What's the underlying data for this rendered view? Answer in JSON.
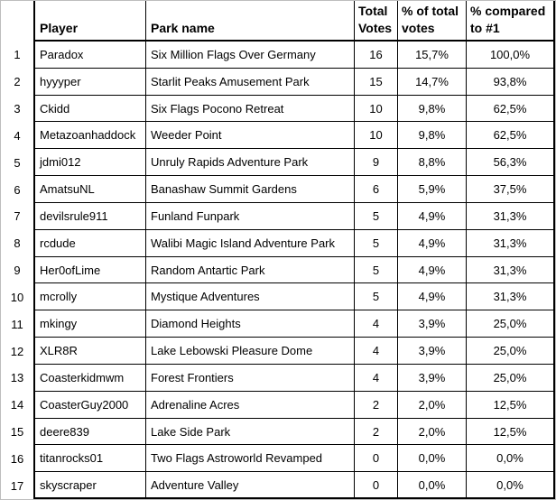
{
  "sheet": {
    "columns": {
      "player": "Player",
      "park": "Park name",
      "votes": [
        "Total",
        "Votes"
      ],
      "pct": [
        "% of total",
        "votes"
      ],
      "cmp": [
        "% compared",
        "to #1"
      ]
    },
    "rows": [
      {
        "rank": "1",
        "player": "Paradox",
        "park": "Six Million Flags Over Germany",
        "votes": "16",
        "pct": "15,7%",
        "cmp": "100,0%"
      },
      {
        "rank": "2",
        "player": "hyyyper",
        "park": "Starlit Peaks Amusement Park",
        "votes": "15",
        "pct": "14,7%",
        "cmp": "93,8%"
      },
      {
        "rank": "3",
        "player": "Ckidd",
        "park": "Six Flags Pocono Retreat",
        "votes": "10",
        "pct": "9,8%",
        "cmp": "62,5%"
      },
      {
        "rank": "4",
        "player": "Metazoanhaddock",
        "park": "Weeder Point",
        "votes": "10",
        "pct": "9,8%",
        "cmp": "62,5%"
      },
      {
        "rank": "5",
        "player": "jdmi012",
        "park": "Unruly Rapids Adventure Park",
        "votes": "9",
        "pct": "8,8%",
        "cmp": "56,3%"
      },
      {
        "rank": "6",
        "player": "AmatsuNL",
        "park": "Banashaw Summit Gardens",
        "votes": "6",
        "pct": "5,9%",
        "cmp": "37,5%"
      },
      {
        "rank": "7",
        "player": "devilsrule911",
        "park": "Funland Funpark",
        "votes": "5",
        "pct": "4,9%",
        "cmp": "31,3%"
      },
      {
        "rank": "8",
        "player": "rcdude",
        "park": "Walibi Magic Island Adventure Park",
        "votes": "5",
        "pct": "4,9%",
        "cmp": "31,3%"
      },
      {
        "rank": "9",
        "player": "Her0ofLime",
        "park": "Random Antartic Park",
        "votes": "5",
        "pct": "4,9%",
        "cmp": "31,3%"
      },
      {
        "rank": "10",
        "player": "mcrolly",
        "park": "Mystique Adventures",
        "votes": "5",
        "pct": "4,9%",
        "cmp": "31,3%"
      },
      {
        "rank": "11",
        "player": "mkingy",
        "park": "Diamond Heights",
        "votes": "4",
        "pct": "3,9%",
        "cmp": "25,0%"
      },
      {
        "rank": "12",
        "player": "XLR8R",
        "park": "Lake Lebowski Pleasure Dome",
        "votes": "4",
        "pct": "3,9%",
        "cmp": "25,0%"
      },
      {
        "rank": "13",
        "player": "Coasterkidmwm",
        "park": "Forest Frontiers",
        "votes": "4",
        "pct": "3,9%",
        "cmp": "25,0%"
      },
      {
        "rank": "14",
        "player": "CoasterGuy2000",
        "park": "Adrenaline Acres",
        "votes": "2",
        "pct": "2,0%",
        "cmp": "12,5%"
      },
      {
        "rank": "15",
        "player": "deere839",
        "park": "Lake Side Park",
        "votes": "2",
        "pct": "2,0%",
        "cmp": "12,5%"
      },
      {
        "rank": "16",
        "player": "titanrocks01",
        "park": "Two Flags Astroworld Revamped",
        "votes": "0",
        "pct": "0,0%",
        "cmp": "0,0%"
      },
      {
        "rank": "17",
        "player": "skyscraper",
        "park": "Adventure Valley",
        "votes": "0",
        "pct": "0,0%",
        "cmp": "0,0%"
      }
    ]
  },
  "colors": {
    "text": "#000000",
    "cell_border": "#000000",
    "frame_border": "#bdbdbd",
    "background": "#ffffff"
  }
}
